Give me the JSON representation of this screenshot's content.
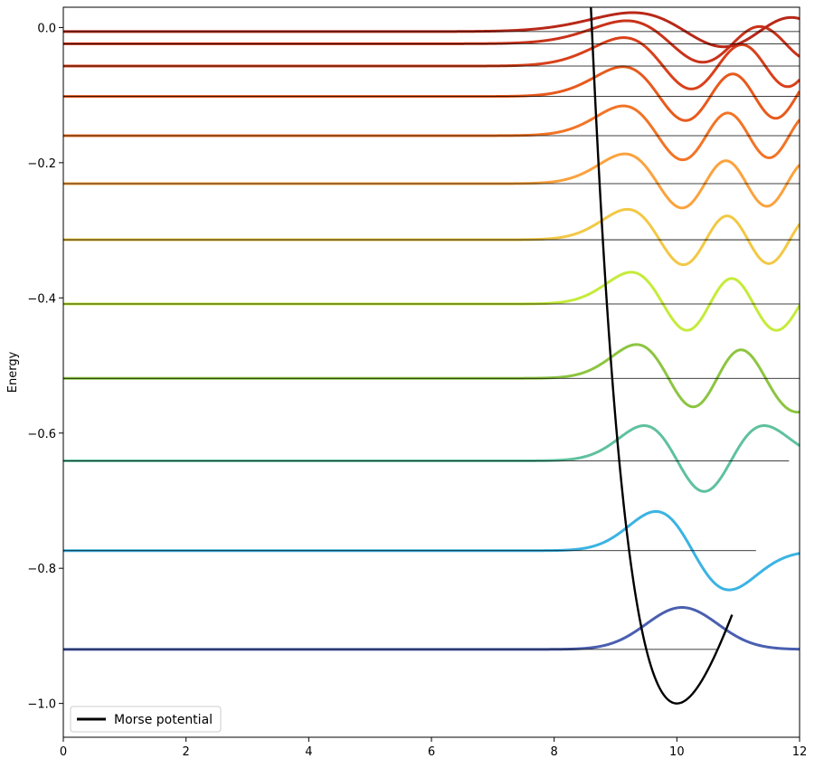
{
  "chart_data": {
    "type": "line",
    "title": "",
    "xlabel": "",
    "ylabel": "Energy",
    "xlim": [
      0,
      12
    ],
    "ylim": [
      -1.05,
      0.03
    ],
    "x_ticks": [
      0,
      2,
      4,
      6,
      8,
      10,
      12
    ],
    "y_ticks": [
      -1.0,
      -0.8,
      -0.6,
      -0.4,
      -0.2,
      0.0
    ],
    "x_tick_labels": [
      "0",
      "2",
      "4",
      "6",
      "8",
      "10",
      "12"
    ],
    "y_tick_labels": [
      "−1.0",
      "−0.8",
      "−0.6",
      "−0.4",
      "−0.2",
      "0.0"
    ],
    "grid": false,
    "legend": {
      "placement": "lower-left",
      "entries": [
        "Morse potential"
      ]
    },
    "potential": {
      "name": "Morse potential",
      "color": "#000000",
      "depth": 1.0,
      "r_eq": 10.0,
      "a": 0.5,
      "x_range": [
        0,
        10.9
      ]
    },
    "levels": [
      {
        "n": 0,
        "energy": -0.92,
        "color": "#4a5fb0",
        "amp": 0.062
      },
      {
        "n": 1,
        "energy": -0.774,
        "color": "#3bb3e3",
        "amp": 0.058
      },
      {
        "n": 2,
        "energy": -0.641,
        "color": "#5fc19e",
        "amp": 0.052
      },
      {
        "n": 3,
        "energy": -0.519,
        "color": "#8cc540",
        "amp": 0.05
      },
      {
        "n": 4,
        "energy": -0.409,
        "color": "#c5eb3a",
        "amp": 0.047
      },
      {
        "n": 5,
        "energy": -0.314,
        "color": "#f2c845",
        "amp": 0.045
      },
      {
        "n": 6,
        "energy": -0.231,
        "color": "#fba23d",
        "amp": 0.044
      },
      {
        "n": 7,
        "energy": -0.16,
        "color": "#f27425",
        "amp": 0.044
      },
      {
        "n": 8,
        "energy": -0.102,
        "color": "#e75a1d",
        "amp": 0.044
      },
      {
        "n": 9,
        "energy": -0.057,
        "color": "#d9401a",
        "amp": 0.042
      },
      {
        "n": 10,
        "energy": -0.024,
        "color": "#c8331a",
        "amp": 0.034
      },
      {
        "n": 11,
        "energy": -0.006,
        "color": "#b82818",
        "amp": 0.028
      }
    ]
  }
}
